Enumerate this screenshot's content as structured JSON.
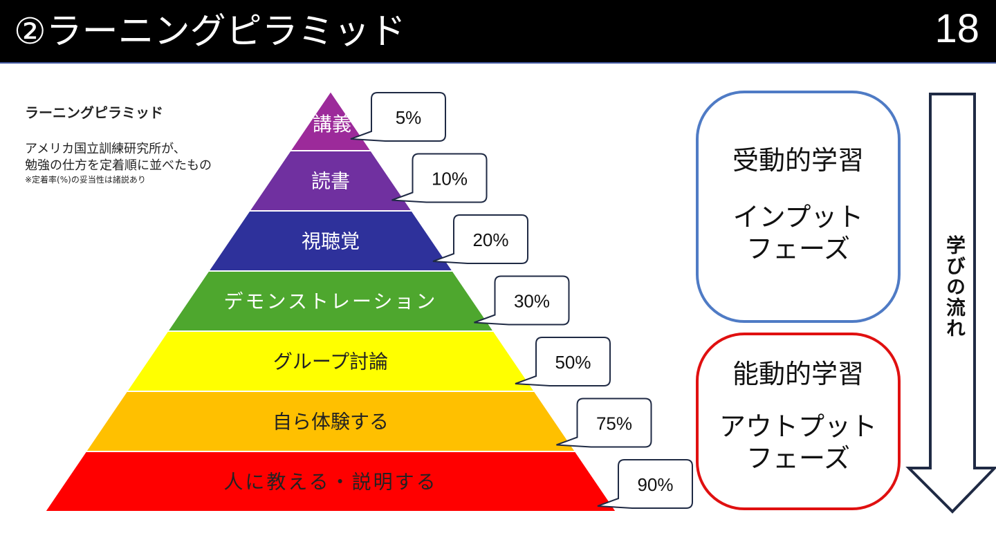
{
  "header": {
    "title": "②ラーニングピラミッド",
    "page_number": "18"
  },
  "info": {
    "title": "ラーニングピラミッド",
    "description_line1": "アメリカ国立訓練研究所が、",
    "description_line2": "勉強の仕方を定着順に並べたもの",
    "note": "※定着率(%)の妥当性は諸説あり"
  },
  "pyramid": {
    "levels": [
      {
        "label": "講義",
        "rate": "5%",
        "retention": 5,
        "color": "#9c2a9a",
        "text_color": "#ffffff"
      },
      {
        "label": "読書",
        "rate": "10%",
        "retention": 10,
        "color": "#7030a0",
        "text_color": "#ffffff"
      },
      {
        "label": "視聴覚",
        "rate": "20%",
        "retention": 20,
        "color": "#2e319b",
        "text_color": "#ffffff"
      },
      {
        "label": "デモンストレーション",
        "rate": "30%",
        "retention": 30,
        "color": "#4ea72e",
        "text_color": "#ffffff"
      },
      {
        "label": "グループ討論",
        "rate": "50%",
        "retention": 50,
        "color": "#ffff00",
        "text_color": "#222222"
      },
      {
        "label": "自ら体験する",
        "rate": "75%",
        "retention": 75,
        "color": "#ffc000",
        "text_color": "#222222"
      },
      {
        "label": "人に教える・説明する",
        "rate": "90%",
        "retention": 90,
        "color": "#ff0000",
        "text_color": "#222222"
      }
    ]
  },
  "phases": {
    "passive": {
      "title": "受動的学習",
      "sub_line1": "インプット",
      "sub_line2": "フェーズ",
      "border_color": "#4f7bc5"
    },
    "active": {
      "title": "能動的学習",
      "sub_line1": "アウトプット",
      "sub_line2": "フェーズ",
      "border_color": "#e01010"
    }
  },
  "flow": {
    "label": "学びの流れ"
  }
}
